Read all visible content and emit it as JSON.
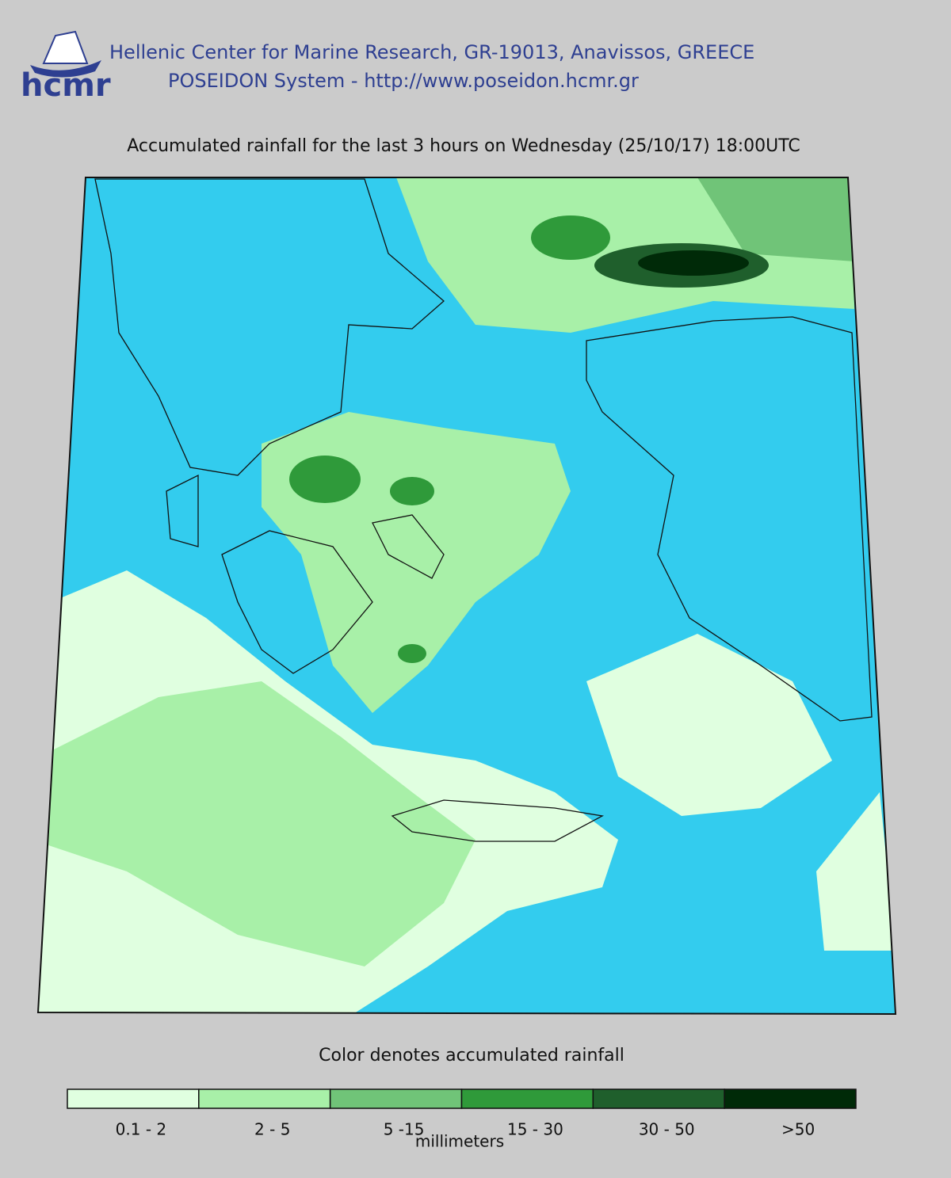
{
  "header": {
    "logo": "hcmr",
    "line1": "Hellenic Center for Marine Research, GR-19013, Anavissos, GREECE",
    "line2": "POSEIDON System - http://www.poseidon.hcmr.gr"
  },
  "title": "Accumulated rainfall for the last 3 hours on Wednesday (25/10/17) 18:00UTC",
  "legend": {
    "caption": "Color denotes accumulated rainfall",
    "units": "millimeters",
    "bins": [
      {
        "label": "0.1 - 2",
        "color": "#e0ffe0"
      },
      {
        "label": "2 - 5",
        "color": "#a8f0a8"
      },
      {
        "label": "5 -15",
        "color": "#70c478"
      },
      {
        "label": "15 - 30",
        "color": "#2f9a3a"
      },
      {
        "label": "30 - 50",
        "color": "#1f5f2c"
      },
      {
        "label": ">50",
        "color": "#002a08"
      }
    ]
  }
}
